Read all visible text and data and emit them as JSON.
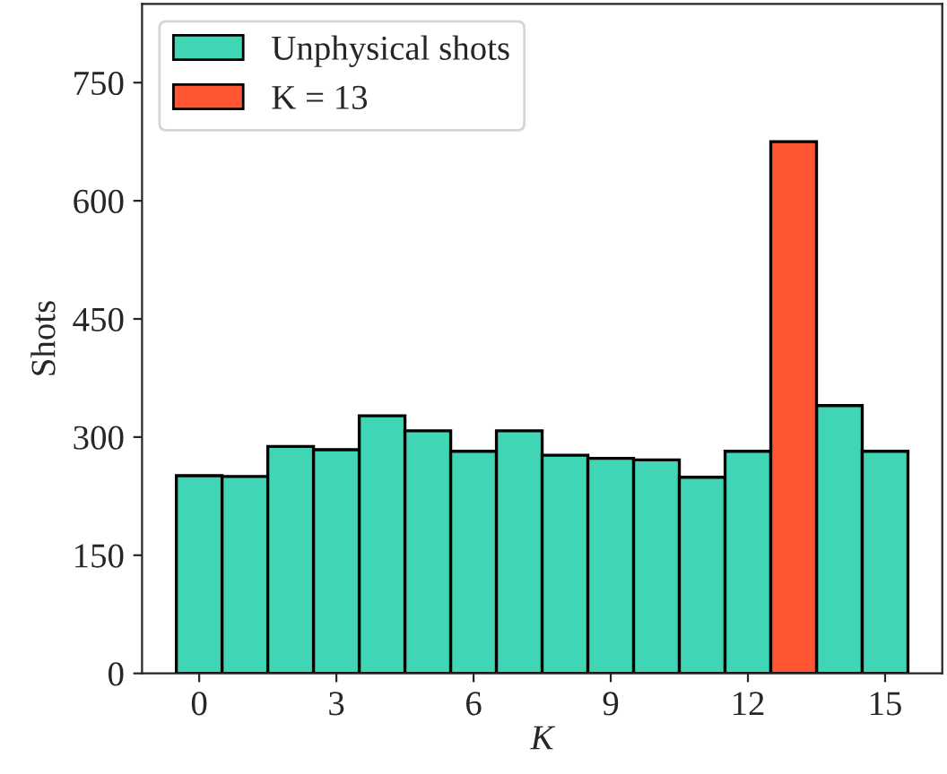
{
  "chart_data": {
    "type": "histogram",
    "xlabel": "K",
    "ylabel": "Shots",
    "bins": [
      -0.5,
      0.5,
      1.5,
      2.5,
      3.5,
      4.5,
      5.5,
      6.5,
      7.5,
      8.5,
      9.5,
      10.5,
      11.5,
      12.5,
      13.5,
      14.5,
      15.5
    ],
    "series": [
      {
        "name": "Unphysical shots",
        "color": "#40d5b4",
        "values": [
          251,
          250,
          288,
          284,
          327,
          308,
          282,
          308,
          277,
          273,
          271,
          249,
          282,
          null,
          340,
          282
        ]
      },
      {
        "name": "K = 13",
        "color": "#ff5533",
        "values": [
          null,
          null,
          null,
          null,
          null,
          null,
          null,
          null,
          null,
          null,
          null,
          null,
          null,
          675,
          null,
          null
        ]
      }
    ],
    "xlim": [
      -1.25,
      16.25
    ],
    "xticks": [
      0,
      3,
      6,
      9,
      12,
      15
    ],
    "ylim": [
      0,
      850
    ],
    "yticks": [
      0,
      150,
      300,
      450,
      600,
      750
    ],
    "grid": false,
    "legend": "top left"
  }
}
